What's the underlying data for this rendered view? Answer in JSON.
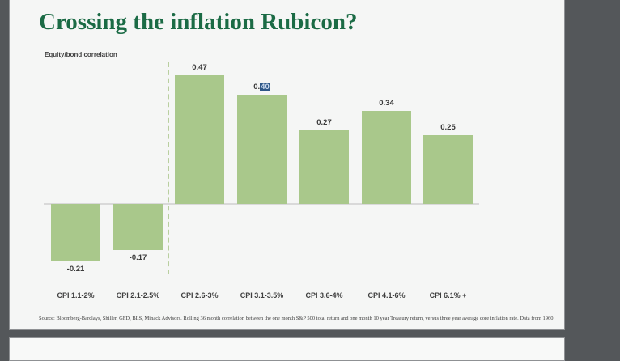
{
  "app": {
    "canvas_color": "#54575a",
    "slide_background": "#f5f6f5"
  },
  "slide": {
    "title": "Crossing the inflation Rubicon?",
    "title_color": "#1b6b45",
    "axis_label": "Equity/bond correlation",
    "source": "Source: Bloomberg-Barclays, Shiller, GFD, BLS, Minack Advisors. Rolling 36 month correlation between the one month S&P 500 total return and one month 10 year Treasury return, versus three year average core inflation rate. Data from 1960."
  },
  "chart_data": {
    "type": "bar",
    "title": "Crossing the inflation Rubicon?",
    "ylabel": "Equity/bond correlation",
    "xlabel": "",
    "categories": [
      "CPI 1.1-2%",
      "CPI 2.1-2.5%",
      "CPI 2.6-3%",
      "CPI 3.1-3.5%",
      "CPI 3.6-4%",
      "CPI 4.1-6%",
      "CPI 6.1% +"
    ],
    "values": [
      -0.21,
      -0.17,
      0.47,
      0.4,
      0.27,
      0.34,
      0.25
    ],
    "data_labels": [
      "-0.21",
      "-0.17",
      "0.47",
      "0.40",
      "0.27",
      "0.34",
      "0.25"
    ],
    "selected_label": {
      "index": 3,
      "prefix": "0.",
      "selected_text": "40"
    },
    "bar_color": "#a9c88b",
    "divider": {
      "style": "dashed",
      "after_index": 1,
      "color": "#b9cf9f"
    },
    "baseline_color": "#d9d9d9",
    "ylim": [
      -0.25,
      0.5
    ],
    "grid": false,
    "legend": "none"
  }
}
